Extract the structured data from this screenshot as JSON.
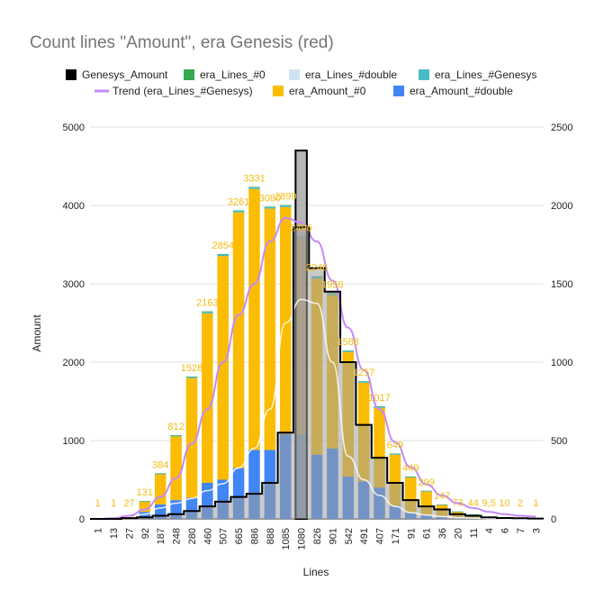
{
  "chart_data": {
    "type": "bar",
    "title": "Count lines \"Amount\", era Genesis (red)",
    "xlabel": "Lines",
    "ylabel": "Amount",
    "ylim": [
      0,
      5000
    ],
    "y2lim": [
      0,
      2500
    ],
    "y_ticks": [
      "0",
      "1000",
      "2000",
      "3000",
      "4000",
      "5000"
    ],
    "y2_ticks": [
      "0",
      "500",
      "1000",
      "1500",
      "2000",
      "2500"
    ],
    "categories": [
      "1",
      "13",
      "27",
      "92",
      "187",
      "248",
      "280",
      "460",
      "507",
      "665",
      "886",
      "888",
      "1085",
      "1080",
      "826",
      "901",
      "542",
      "491",
      "407",
      "171",
      "91",
      "61",
      "36",
      "20",
      "11",
      "4",
      "6",
      "7",
      "3"
    ],
    "series": [
      {
        "name": "era_Amount_#double",
        "axis": "left",
        "values": [
          0,
          5,
          10,
          90,
          185,
          240,
          270,
          460,
          500,
          650,
          880,
          880,
          1080,
          1080,
          820,
          900,
          540,
          480,
          400,
          170,
          80,
          50,
          30,
          15,
          10,
          4,
          3,
          2,
          1
        ]
      },
      {
        "name": "era_Amount_#0",
        "axis": "left",
        "values": [
          1,
          1,
          27,
          131,
          384,
          812,
          1528,
          2163,
          2854,
          3261,
          3331,
          3080,
          2899,
          2496,
          2246,
          1956,
          1588,
          1257,
          1017,
          649,
          449,
          299,
          147,
          73,
          44,
          9.5,
          10,
          2,
          1
        ]
      },
      {
        "name": "era_Lines_#Genesys",
        "axis": "left",
        "values": [
          0,
          0,
          3,
          5,
          10,
          12,
          15,
          20,
          20,
          20,
          20,
          20,
          20,
          20,
          25,
          20,
          15,
          15,
          15,
          12,
          10,
          8,
          5,
          5,
          4,
          3,
          2,
          2,
          1
        ]
      },
      {
        "name": "era_Lines_#0",
        "axis": "left",
        "values": [
          0,
          0,
          1,
          2,
          3,
          3,
          4,
          5,
          5,
          5,
          5,
          5,
          5,
          5,
          5,
          5,
          5,
          4,
          4,
          3,
          3,
          2,
          2,
          2,
          1,
          1,
          1,
          1,
          1
        ]
      },
      {
        "name": "Genesys_Amount",
        "axis": "left",
        "values": [
          0,
          0,
          0,
          0,
          0,
          0,
          0,
          0,
          0,
          0,
          0,
          0,
          0,
          4700,
          0,
          0,
          0,
          0,
          0,
          0,
          0,
          0,
          0,
          0,
          0,
          0,
          0,
          0,
          0
        ]
      },
      {
        "name": "Genesys_Amount",
        "axis": "right",
        "style": "step",
        "values": [
          0,
          0,
          5,
          10,
          20,
          30,
          50,
          80,
          110,
          140,
          160,
          230,
          550,
          1860,
          1600,
          1450,
          1000,
          600,
          390,
          230,
          120,
          80,
          60,
          30,
          20,
          10,
          6,
          4,
          2
        ]
      },
      {
        "name": "era_Lines_#double",
        "axis": "left",
        "style": "line",
        "values": [
          0,
          5,
          20,
          60,
          140,
          200,
          260,
          360,
          450,
          650,
          900,
          1400,
          2500,
          2800,
          2750,
          2000,
          800,
          500,
          300,
          160,
          80,
          50,
          30,
          15,
          10,
          5,
          3,
          2,
          1
        ]
      },
      {
        "name": "Trend (era_Lines_#Genesys)",
        "axis": "right",
        "style": "line",
        "values": [
          0,
          5,
          20,
          60,
          140,
          260,
          480,
          700,
          1000,
          1300,
          1500,
          1770,
          1920,
          1890,
          1770,
          1520,
          1220,
          950,
          700,
          490,
          330,
          220,
          150,
          100,
          70,
          45,
          30,
          20,
          15
        ]
      }
    ],
    "data_labels": [
      "1",
      "1",
      "27",
      "131",
      "384",
      "812",
      "1528",
      "2163",
      "2854",
      "3261",
      "3331",
      "3080",
      "2899",
      "2496",
      "2246",
      "1956",
      "1588",
      "1257",
      "1017",
      "649",
      "449",
      "299",
      "147",
      "73",
      "44",
      "9,5",
      "10",
      "2",
      "1"
    ],
    "legend": [
      {
        "label": "Genesys_Amount",
        "color": "#000000"
      },
      {
        "label": "era_Lines_#0",
        "color": "#34a853"
      },
      {
        "label": "era_Lines_#double",
        "color": "#cfe2f3"
      },
      {
        "label": "era_Lines_#Genesys",
        "color": "#46bdc6"
      },
      {
        "label": "Trend (era_Lines_#Genesys)",
        "color": "#c58af9"
      },
      {
        "label": "era_Amount_#0",
        "color": "#fbbc04"
      },
      {
        "label": "era_Amount_#double",
        "color": "#4285f4"
      }
    ],
    "legend_position": "top",
    "grid": true
  }
}
